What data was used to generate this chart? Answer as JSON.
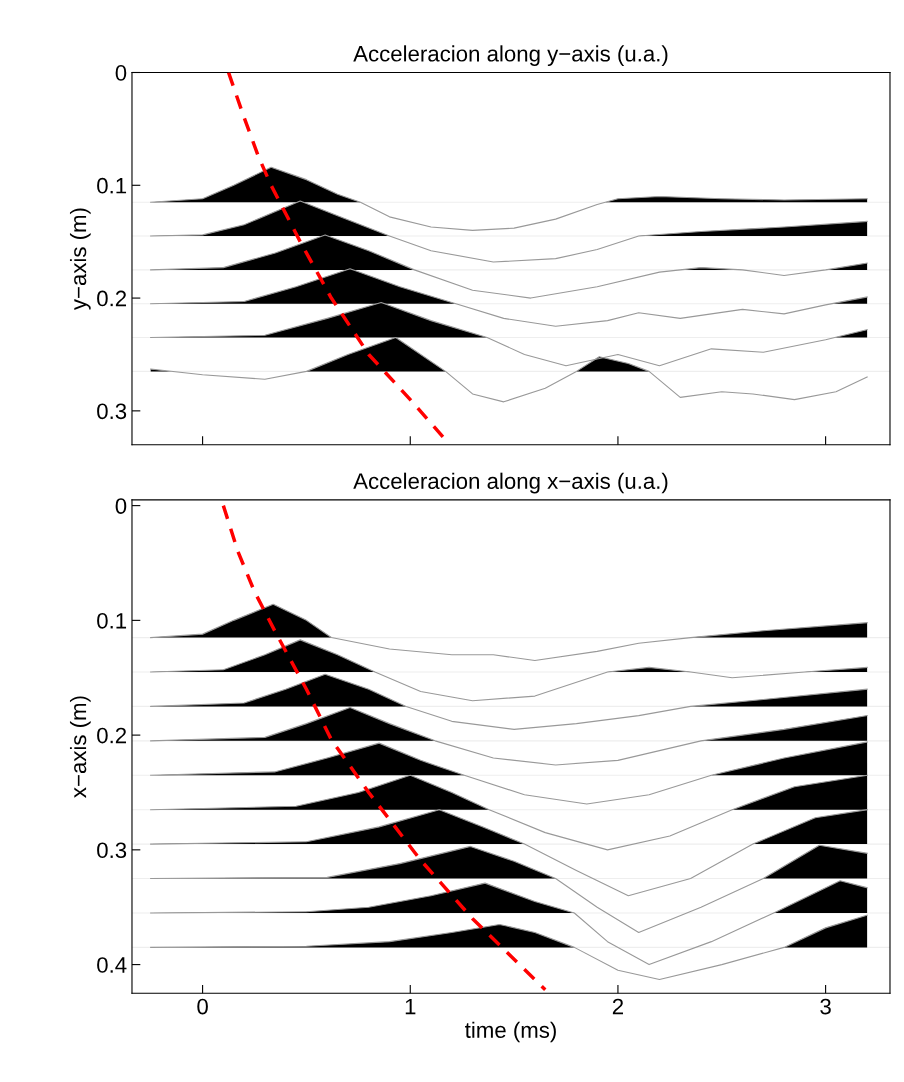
{
  "chart_data": [
    {
      "type": "line",
      "title": "Acceleracion along y−axis (u.a.)",
      "ylabel": "y−axis (m)",
      "xlim": [
        -0.34,
        3.31
      ],
      "ylim": [
        0.33,
        0
      ],
      "xticks": [
        0,
        1,
        2,
        3
      ],
      "yticks": [
        0,
        0.1,
        0.2,
        0.3
      ],
      "tick_labels": "y",
      "ref_lines": [
        {
          "axis": "y",
          "value": 0.115,
          "color": "#eeeeee"
        },
        {
          "axis": "y",
          "value": 0.145,
          "color": "#eeeeee"
        },
        {
          "axis": "y",
          "value": 0.175,
          "color": "#eeeeee"
        },
        {
          "axis": "y",
          "value": 0.205,
          "color": "#eeeeee"
        },
        {
          "axis": "y",
          "value": 0.235,
          "color": "#eeeeee"
        },
        {
          "axis": "y",
          "value": 0.265,
          "color": "#eeeeee"
        }
      ],
      "series": [
        {
          "color": "#999999",
          "x": [
            -0.25,
            0,
            0.15,
            0.33,
            0.5,
            0.65,
            0.76,
            0.9,
            1.1,
            1.3,
            1.5,
            1.7,
            1.9,
            2.0,
            2.2,
            2.5,
            2.8,
            3.2
          ],
          "values": [
            0.115,
            0.112,
            0.1,
            0.084,
            0.095,
            0.108,
            0.115,
            0.128,
            0.137,
            0.14,
            0.138,
            0.13,
            0.117,
            0.112,
            0.11,
            0.112,
            0.113,
            0.112
          ]
        },
        {
          "color": "#999999",
          "x": [
            -0.25,
            0,
            0.2,
            0.47,
            0.65,
            0.9,
            1.1,
            1.4,
            1.7,
            1.9,
            2.1,
            2.4,
            2.8,
            3.2
          ],
          "values": [
            0.145,
            0.144,
            0.135,
            0.114,
            0.127,
            0.145,
            0.158,
            0.168,
            0.165,
            0.157,
            0.145,
            0.141,
            0.137,
            0.132
          ]
        },
        {
          "color": "#999999",
          "x": [
            -0.25,
            0.1,
            0.35,
            0.59,
            0.8,
            1.02,
            1.3,
            1.58,
            1.9,
            2.2,
            2.4,
            2.6,
            2.8,
            3.0,
            3.2
          ],
          "values": [
            0.175,
            0.173,
            0.16,
            0.144,
            0.158,
            0.175,
            0.193,
            0.2,
            0.19,
            0.177,
            0.173,
            0.175,
            0.18,
            0.175,
            0.169
          ]
        },
        {
          "color": "#999999",
          "x": [
            -0.25,
            0.2,
            0.45,
            0.71,
            0.95,
            1.22,
            1.45,
            1.7,
            1.95,
            2.1,
            2.3,
            2.6,
            2.8,
            3.0,
            3.2
          ],
          "values": [
            0.205,
            0.203,
            0.19,
            0.174,
            0.19,
            0.205,
            0.218,
            0.225,
            0.22,
            0.213,
            0.218,
            0.21,
            0.214,
            0.206,
            0.199
          ]
        },
        {
          "color": "#999999",
          "x": [
            -0.25,
            0.3,
            0.6,
            0.86,
            1.1,
            1.37,
            1.55,
            1.75,
            2.0,
            2.2,
            2.45,
            2.7,
            3.0,
            3.2
          ],
          "values": [
            0.235,
            0.233,
            0.218,
            0.204,
            0.22,
            0.235,
            0.25,
            0.26,
            0.25,
            0.26,
            0.245,
            0.248,
            0.237,
            0.228
          ]
        },
        {
          "color": "#999999",
          "x": [
            -0.25,
            0,
            0.3,
            0.5,
            0.7,
            0.93,
            1.17,
            1.3,
            1.45,
            1.65,
            1.8,
            1.91,
            2.05,
            2.15,
            2.3,
            2.5,
            2.65,
            2.85,
            3.05,
            3.2
          ],
          "values": [
            0.263,
            0.268,
            0.272,
            0.265,
            0.25,
            0.235,
            0.265,
            0.285,
            0.292,
            0.28,
            0.265,
            0.252,
            0.258,
            0.265,
            0.288,
            0.283,
            0.285,
            0.29,
            0.283,
            0.27
          ]
        },
        {
          "color": "#ff0000",
          "line_style": "dashed",
          "x": [
            0.125,
            0.2,
            0.27,
            0.33,
            0.47,
            0.62,
            0.8,
            1.0,
            1.19
          ],
          "values": [
            0,
            0.04,
            0.075,
            0.1,
            0.15,
            0.2,
            0.25,
            0.29,
            0.33
          ]
        }
      ]
    },
    {
      "type": "line",
      "title": "Acceleracion along x−axis (u.a.)",
      "xlabel": "time (ms)",
      "ylabel": "x−axis (m)",
      "xlim": [
        -0.34,
        3.31
      ],
      "ylim": [
        0.425,
        -0.005
      ],
      "xticks": [
        0,
        1,
        2,
        3
      ],
      "yticks": [
        0,
        0.1,
        0.2,
        0.3,
        0.4
      ],
      "ref_lines": [
        {
          "axis": "y",
          "value": 0.115,
          "color": "#eeeeee"
        },
        {
          "axis": "y",
          "value": 0.145,
          "color": "#eeeeee"
        },
        {
          "axis": "y",
          "value": 0.175,
          "color": "#eeeeee"
        },
        {
          "axis": "y",
          "value": 0.205,
          "color": "#eeeeee"
        },
        {
          "axis": "y",
          "value": 0.235,
          "color": "#eeeeee"
        },
        {
          "axis": "y",
          "value": 0.265,
          "color": "#eeeeee"
        },
        {
          "axis": "y",
          "value": 0.295,
          "color": "#eeeeee"
        },
        {
          "axis": "y",
          "value": 0.325,
          "color": "#eeeeee"
        },
        {
          "axis": "y",
          "value": 0.355,
          "color": "#eeeeee"
        },
        {
          "axis": "y",
          "value": 0.385,
          "color": "#eeeeee"
        }
      ],
      "series": [
        {
          "color": "#999999",
          "x": [
            -0.25,
            0,
            0.15,
            0.34,
            0.5,
            0.62,
            0.9,
            1.2,
            1.4,
            1.6,
            1.9,
            2.1,
            2.35,
            2.7,
            3.2
          ],
          "values": [
            0.115,
            0.112,
            0.1,
            0.086,
            0.1,
            0.115,
            0.125,
            0.13,
            0.13,
            0.135,
            0.127,
            0.12,
            0.115,
            0.109,
            0.102
          ]
        },
        {
          "color": "#999999",
          "x": [
            -0.25,
            0.1,
            0.3,
            0.47,
            0.65,
            0.83,
            1.05,
            1.3,
            1.6,
            1.95,
            2.15,
            2.35,
            2.55,
            2.9,
            3.2
          ],
          "values": [
            0.145,
            0.143,
            0.13,
            0.117,
            0.13,
            0.145,
            0.162,
            0.17,
            0.166,
            0.145,
            0.141,
            0.145,
            0.15,
            0.145,
            0.141
          ]
        },
        {
          "color": "#999999",
          "x": [
            -0.25,
            0.2,
            0.4,
            0.59,
            0.8,
            0.98,
            1.2,
            1.5,
            1.8,
            2.1,
            2.35,
            2.7,
            3.2
          ],
          "values": [
            0.175,
            0.172,
            0.16,
            0.147,
            0.16,
            0.175,
            0.188,
            0.195,
            0.19,
            0.183,
            0.175,
            0.169,
            0.16
          ]
        },
        {
          "color": "#999999",
          "x": [
            -0.25,
            0.3,
            0.5,
            0.71,
            0.9,
            1.12,
            1.4,
            1.7,
            2.0,
            2.4,
            2.8,
            3.2
          ],
          "values": [
            0.205,
            0.202,
            0.19,
            0.176,
            0.19,
            0.205,
            0.22,
            0.226,
            0.222,
            0.205,
            0.195,
            0.183
          ]
        },
        {
          "color": "#999999",
          "x": [
            -0.25,
            0.35,
            0.6,
            0.85,
            1.05,
            1.26,
            1.55,
            1.85,
            2.15,
            2.45,
            2.8,
            3.2
          ],
          "values": [
            0.235,
            0.232,
            0.22,
            0.207,
            0.222,
            0.235,
            0.252,
            0.26,
            0.252,
            0.235,
            0.22,
            0.206
          ]
        },
        {
          "color": "#999999",
          "x": [
            -0.25,
            0.45,
            0.75,
            1.0,
            1.2,
            1.38,
            1.65,
            1.95,
            2.25,
            2.55,
            2.85,
            3.2
          ],
          "values": [
            0.265,
            0.262,
            0.25,
            0.235,
            0.25,
            0.265,
            0.285,
            0.3,
            0.288,
            0.265,
            0.245,
            0.235
          ]
        },
        {
          "color": "#999999",
          "x": [
            -0.25,
            0.5,
            0.85,
            1.14,
            1.35,
            1.55,
            1.8,
            2.05,
            2.35,
            2.65,
            2.95,
            3.2
          ],
          "values": [
            0.295,
            0.293,
            0.28,
            0.265,
            0.28,
            0.295,
            0.318,
            0.34,
            0.325,
            0.295,
            0.272,
            0.265
          ]
        },
        {
          "color": "#999999",
          "x": [
            -0.25,
            0.6,
            0.95,
            1.29,
            1.5,
            1.7,
            1.9,
            2.1,
            2.4,
            2.7,
            2.97,
            3.2
          ],
          "values": [
            0.325,
            0.324,
            0.312,
            0.297,
            0.31,
            0.325,
            0.35,
            0.372,
            0.35,
            0.325,
            0.296,
            0.303
          ]
        },
        {
          "color": "#999999",
          "x": [
            -0.25,
            0.5,
            0.8,
            1.1,
            1.36,
            1.6,
            1.79,
            1.95,
            2.15,
            2.45,
            2.75,
            3.07,
            3.2
          ],
          "values": [
            0.355,
            0.354,
            0.35,
            0.34,
            0.329,
            0.345,
            0.355,
            0.38,
            0.4,
            0.38,
            0.355,
            0.327,
            0.333
          ]
        },
        {
          "color": "#999999",
          "x": [
            -0.25,
            0.5,
            0.9,
            1.2,
            1.43,
            1.6,
            1.79,
            2.0,
            2.2,
            2.5,
            2.8,
            3.0,
            3.2
          ],
          "values": [
            0.385,
            0.384,
            0.38,
            0.372,
            0.365,
            0.372,
            0.385,
            0.405,
            0.413,
            0.4,
            0.385,
            0.368,
            0.357
          ]
        },
        {
          "color": "#ff0000",
          "line_style": "dashed",
          "x": [
            0.1,
            0.17,
            0.25,
            0.35,
            0.5,
            0.62,
            0.8,
            1.05,
            1.3,
            1.65
          ],
          "values": [
            0,
            0.04,
            0.075,
            0.11,
            0.16,
            0.204,
            0.25,
            0.309,
            0.36,
            0.422
          ]
        }
      ]
    }
  ]
}
